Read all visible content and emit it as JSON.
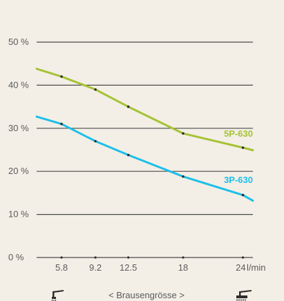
{
  "chart_data": {
    "type": "line",
    "y_ticks": [
      "50 %",
      "40 %",
      "30 %",
      "20 %",
      "10 %",
      "0 %"
    ],
    "y_tick_values": [
      50,
      40,
      30,
      20,
      10,
      0
    ],
    "ylim": [
      0,
      50
    ],
    "x_ticks": [
      "5.8",
      "9.2",
      "12.5",
      "18",
      "24"
    ],
    "x_unit": "l/min",
    "x_values": [
      5.8,
      9.2,
      12.5,
      18,
      24
    ],
    "xlim": [
      3.3,
      25.0
    ],
    "xlabel": "< Brausengrösse >",
    "grid": true,
    "series": [
      {
        "name": "5P-630",
        "color": "#a6c235",
        "values": [
          42,
          39,
          35,
          28.8,
          25.5
        ],
        "start": [
          3.3,
          43.8
        ],
        "end": [
          25.0,
          24.9
        ]
      },
      {
        "name": "3P-630",
        "color": "#1cbfea",
        "values": [
          31,
          27,
          23.8,
          18.8,
          14.5
        ],
        "start": [
          3.3,
          32.7
        ],
        "end": [
          25.0,
          13.2
        ]
      }
    ]
  },
  "icons": {
    "left": "small-shower-icon",
    "right": "large-shower-icon"
  }
}
